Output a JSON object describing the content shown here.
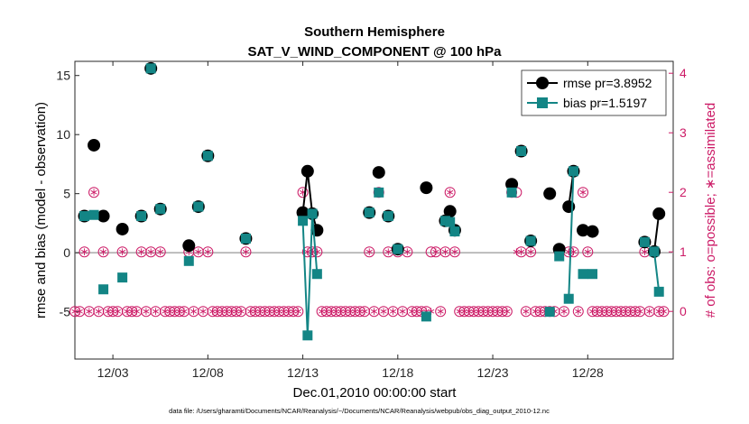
{
  "chart_data": {
    "type": "line",
    "title_line1": "Southern Hemisphere",
    "title_line2": "SAT_V_WIND_COMPONENT @ 100 hPa",
    "xlabel": "Dec.01,2010 00:00:00 start",
    "ylabel_left": "rmse and bias (model - observation)",
    "ylabel_right": "# of obs: o=possible; ∗=assimilated",
    "footer": "data file: /Users/gharamti/Documents/NCAR/Reanalysis/~/Documents/NCAR/Reanalysis/webpub/obs_diag_output_2010-12.nc",
    "xlim": [
      0,
      31.5
    ],
    "ylim_left": [
      -9.0,
      16.2
    ],
    "ylim_right": [
      -0.8,
      4.2
    ],
    "x_ticks": [
      {
        "x": 2.0,
        "label": "12/03"
      },
      {
        "x": 7.0,
        "label": "12/08"
      },
      {
        "x": 12.0,
        "label": "12/13"
      },
      {
        "x": 17.0,
        "label": "12/18"
      },
      {
        "x": 22.0,
        "label": "12/23"
      },
      {
        "x": 27.0,
        "label": "12/28"
      }
    ],
    "y_ticks_left": [
      "-5",
      "0",
      "5",
      "10",
      "15"
    ],
    "y_ticks_right": [
      "0",
      "1",
      "2",
      "3",
      "4"
    ],
    "legend": [
      {
        "label": "rmse pr=3.8952",
        "color": "#000000"
      },
      {
        "label": "bias pr=1.5197",
        "color": "#138585"
      }
    ],
    "colors": {
      "rmse": "#000000",
      "bias": "#138585",
      "obs": "#cc1a66",
      "zero_line": "#aaaaaa"
    },
    "series": [
      {
        "name": "rmse",
        "points": [
          [
            0.5,
            3.1
          ],
          [
            1.0,
            9.1
          ],
          [
            1.5,
            3.1
          ],
          [
            2.5,
            2.0
          ],
          [
            3.5,
            3.1
          ],
          [
            4.0,
            15.6
          ],
          [
            4.5,
            3.7
          ],
          [
            6.0,
            0.6
          ],
          [
            6.5,
            3.9
          ],
          [
            7.0,
            8.2
          ],
          [
            9.0,
            1.2
          ],
          [
            12.0,
            3.4
          ],
          [
            12.25,
            6.9
          ],
          [
            12.5,
            3.3
          ],
          [
            12.75,
            1.9
          ],
          [
            15.5,
            3.4
          ],
          [
            16.0,
            6.8
          ],
          [
            16.5,
            3.1
          ],
          [
            17.0,
            0.3
          ],
          [
            18.5,
            5.5
          ],
          [
            19.5,
            2.7
          ],
          [
            19.75,
            3.5
          ],
          [
            20.0,
            1.9
          ],
          [
            23.0,
            5.8
          ],
          [
            23.5,
            8.6
          ],
          [
            24.0,
            1.0
          ],
          [
            25.0,
            5.0
          ],
          [
            25.5,
            0.3
          ],
          [
            26.0,
            3.9
          ],
          [
            26.25,
            6.9
          ],
          [
            26.75,
            1.9
          ],
          [
            27.25,
            1.8
          ],
          [
            30.0,
            0.9
          ],
          [
            30.5,
            0.1
          ],
          [
            30.75,
            3.3
          ]
        ]
      },
      {
        "name": "bias",
        "points": [
          [
            0.5,
            3.1
          ],
          [
            1.0,
            3.2
          ],
          [
            1.5,
            -3.1
          ],
          [
            2.5,
            -2.1
          ],
          [
            3.5,
            3.1
          ],
          [
            4.0,
            15.6
          ],
          [
            4.5,
            3.7
          ],
          [
            6.0,
            -0.7
          ],
          [
            6.5,
            3.9
          ],
          [
            7.0,
            8.2
          ],
          [
            9.0,
            1.2
          ],
          [
            12.0,
            2.7
          ],
          [
            12.25,
            -7.0
          ],
          [
            12.5,
            3.3
          ],
          [
            12.75,
            -1.8
          ],
          [
            15.5,
            3.4
          ],
          [
            16.0,
            5.1
          ],
          [
            16.5,
            3.1
          ],
          [
            17.0,
            0.3
          ],
          [
            18.5,
            -5.4
          ],
          [
            19.5,
            2.7
          ],
          [
            19.75,
            2.6
          ],
          [
            20.0,
            1.8
          ],
          [
            23.0,
            5.1
          ],
          [
            23.5,
            8.6
          ],
          [
            24.0,
            1.0
          ],
          [
            25.0,
            -5.0
          ],
          [
            25.5,
            -0.3
          ],
          [
            26.0,
            -3.9
          ],
          [
            26.25,
            6.9
          ],
          [
            26.75,
            -1.8
          ],
          [
            27.25,
            -1.8
          ],
          [
            30.0,
            0.9
          ],
          [
            30.5,
            0.1
          ],
          [
            30.75,
            -3.3
          ]
        ]
      }
    ],
    "obs_possible": [
      [
        0,
        0
      ],
      [
        0.25,
        0
      ],
      [
        0.5,
        1
      ],
      [
        0.75,
        0
      ],
      [
        1.0,
        2
      ],
      [
        1.25,
        0
      ],
      [
        1.5,
        1
      ],
      [
        1.75,
        0
      ],
      [
        2.0,
        0
      ],
      [
        2.25,
        0
      ],
      [
        2.5,
        1
      ],
      [
        2.75,
        0
      ],
      [
        3.0,
        0
      ],
      [
        3.25,
        0
      ],
      [
        3.5,
        1
      ],
      [
        3.75,
        0
      ],
      [
        4.0,
        1
      ],
      [
        4.25,
        0
      ],
      [
        4.5,
        1
      ],
      [
        4.75,
        0
      ],
      [
        5.0,
        0
      ],
      [
        5.25,
        0
      ],
      [
        5.5,
        0
      ],
      [
        5.75,
        0
      ],
      [
        6.0,
        1
      ],
      [
        6.25,
        0
      ],
      [
        6.5,
        1
      ],
      [
        6.75,
        0
      ],
      [
        7.0,
        1
      ],
      [
        7.25,
        0
      ],
      [
        7.5,
        0
      ],
      [
        7.75,
        0
      ],
      [
        8.0,
        0
      ],
      [
        8.25,
        0
      ],
      [
        8.5,
        0
      ],
      [
        8.75,
        0
      ],
      [
        9.0,
        1
      ],
      [
        9.25,
        0
      ],
      [
        9.5,
        0
      ],
      [
        9.75,
        0
      ],
      [
        10.0,
        0
      ],
      [
        10.25,
        0
      ],
      [
        10.5,
        0
      ],
      [
        10.75,
        0
      ],
      [
        11.0,
        0
      ],
      [
        11.25,
        0
      ],
      [
        11.5,
        0
      ],
      [
        11.75,
        0
      ],
      [
        12.0,
        2
      ],
      [
        12.25,
        1
      ],
      [
        12.5,
        1
      ],
      [
        12.75,
        1
      ],
      [
        13.0,
        0
      ],
      [
        13.25,
        0
      ],
      [
        13.5,
        0
      ],
      [
        13.75,
        0
      ],
      [
        14.0,
        0
      ],
      [
        14.25,
        0
      ],
      [
        14.5,
        0
      ],
      [
        14.75,
        0
      ],
      [
        15.0,
        0
      ],
      [
        15.25,
        0
      ],
      [
        15.5,
        1
      ],
      [
        15.75,
        0
      ],
      [
        16.0,
        2
      ],
      [
        16.25,
        0
      ],
      [
        16.5,
        1
      ],
      [
        16.75,
        0
      ],
      [
        17.0,
        1
      ],
      [
        17.25,
        0
      ],
      [
        17.5,
        1
      ],
      [
        17.75,
        0
      ],
      [
        18.0,
        0
      ],
      [
        18.25,
        0
      ],
      [
        18.5,
        0
      ],
      [
        18.75,
        1
      ],
      [
        19.0,
        1
      ],
      [
        19.25,
        0
      ],
      [
        19.5,
        1
      ],
      [
        19.75,
        2
      ],
      [
        20.0,
        1
      ],
      [
        20.25,
        0
      ],
      [
        20.5,
        0
      ],
      [
        20.75,
        0
      ],
      [
        21.0,
        0
      ],
      [
        21.25,
        0
      ],
      [
        21.5,
        0
      ],
      [
        21.75,
        0
      ],
      [
        22.0,
        0
      ],
      [
        22.25,
        0
      ],
      [
        22.5,
        0
      ],
      [
        22.75,
        0
      ],
      [
        23.0,
        2
      ],
      [
        23.25,
        2
      ],
      [
        23.5,
        1
      ],
      [
        23.75,
        0
      ],
      [
        24.0,
        1
      ],
      [
        24.25,
        0
      ],
      [
        24.5,
        0
      ],
      [
        24.75,
        0
      ],
      [
        25.0,
        0
      ],
      [
        25.25,
        0
      ],
      [
        25.5,
        1
      ],
      [
        25.75,
        0
      ],
      [
        26.0,
        1
      ],
      [
        26.25,
        1
      ],
      [
        26.5,
        0
      ],
      [
        26.75,
        2
      ],
      [
        27.0,
        1
      ],
      [
        27.25,
        0
      ],
      [
        27.5,
        0
      ],
      [
        27.75,
        0
      ],
      [
        28.0,
        0
      ],
      [
        28.25,
        0
      ],
      [
        28.5,
        0
      ],
      [
        28.75,
        0
      ],
      [
        29.0,
        0
      ],
      [
        29.25,
        0
      ],
      [
        29.5,
        0
      ],
      [
        29.75,
        0
      ],
      [
        30.0,
        1
      ],
      [
        30.25,
        0
      ],
      [
        30.5,
        1
      ],
      [
        30.75,
        0
      ],
      [
        31.0,
        0
      ]
    ],
    "obs_assimilated": [
      [
        0,
        0
      ],
      [
        0.25,
        0
      ],
      [
        0.5,
        1
      ],
      [
        0.75,
        0
      ],
      [
        1.0,
        2
      ],
      [
        1.25,
        0
      ],
      [
        1.5,
        1
      ],
      [
        1.75,
        0
      ],
      [
        2.0,
        0
      ],
      [
        2.25,
        0
      ],
      [
        2.5,
        1
      ],
      [
        2.75,
        0
      ],
      [
        3.0,
        0
      ],
      [
        3.25,
        0
      ],
      [
        3.5,
        1
      ],
      [
        3.75,
        0
      ],
      [
        4.0,
        1
      ],
      [
        4.25,
        0
      ],
      [
        4.5,
        1
      ],
      [
        4.75,
        0
      ],
      [
        5.0,
        0
      ],
      [
        5.25,
        0
      ],
      [
        5.5,
        0
      ],
      [
        5.75,
        0
      ],
      [
        6.0,
        1
      ],
      [
        6.25,
        0
      ],
      [
        6.5,
        1
      ],
      [
        6.75,
        0
      ],
      [
        7.0,
        1
      ],
      [
        7.25,
        0
      ],
      [
        7.5,
        0
      ],
      [
        7.75,
        0
      ],
      [
        8.0,
        0
      ],
      [
        8.25,
        0
      ],
      [
        8.5,
        0
      ],
      [
        8.75,
        0
      ],
      [
        9.0,
        1
      ],
      [
        9.25,
        0
      ],
      [
        9.5,
        0
      ],
      [
        9.75,
        0
      ],
      [
        10.0,
        0
      ],
      [
        10.25,
        0
      ],
      [
        10.5,
        0
      ],
      [
        10.75,
        0
      ],
      [
        11.0,
        0
      ],
      [
        11.25,
        0
      ],
      [
        11.5,
        0
      ],
      [
        11.75,
        0
      ],
      [
        12.0,
        2
      ],
      [
        12.25,
        1
      ],
      [
        12.5,
        1
      ],
      [
        12.75,
        1
      ],
      [
        13.0,
        0
      ],
      [
        13.25,
        0
      ],
      [
        13.5,
        0
      ],
      [
        13.75,
        0
      ],
      [
        14.0,
        0
      ],
      [
        14.25,
        0
      ],
      [
        14.5,
        0
      ],
      [
        14.75,
        0
      ],
      [
        15.0,
        0
      ],
      [
        15.25,
        0
      ],
      [
        15.5,
        1
      ],
      [
        15.75,
        0
      ],
      [
        16.0,
        2
      ],
      [
        16.25,
        0
      ],
      [
        16.5,
        1
      ],
      [
        16.75,
        0
      ],
      [
        17.0,
        1
      ],
      [
        17.25,
        0
      ],
      [
        17.5,
        1
      ],
      [
        17.75,
        0
      ],
      [
        18.0,
        0
      ],
      [
        18.25,
        0
      ],
      [
        18.5,
        0
      ],
      [
        18.75,
        0
      ],
      [
        19.0,
        1
      ],
      [
        19.25,
        0
      ],
      [
        19.5,
        1
      ],
      [
        19.75,
        2
      ],
      [
        20.0,
        1
      ],
      [
        20.25,
        0
      ],
      [
        20.5,
        0
      ],
      [
        20.75,
        0
      ],
      [
        21.0,
        0
      ],
      [
        21.25,
        0
      ],
      [
        21.5,
        0
      ],
      [
        21.75,
        0
      ],
      [
        22.0,
        0
      ],
      [
        22.25,
        0
      ],
      [
        22.5,
        0
      ],
      [
        22.75,
        0
      ],
      [
        23.0,
        2
      ],
      [
        23.25,
        1
      ],
      [
        23.5,
        1
      ],
      [
        23.75,
        0
      ],
      [
        24.0,
        1
      ],
      [
        24.25,
        0
      ],
      [
        24.5,
        0
      ],
      [
        24.75,
        0
      ],
      [
        25.0,
        0
      ],
      [
        25.25,
        0
      ],
      [
        25.5,
        1
      ],
      [
        25.75,
        0
      ],
      [
        26.0,
        1
      ],
      [
        26.25,
        1
      ],
      [
        26.5,
        0
      ],
      [
        26.75,
        2
      ],
      [
        27.0,
        1
      ],
      [
        27.25,
        0
      ],
      [
        27.5,
        0
      ],
      [
        27.75,
        0
      ],
      [
        28.0,
        0
      ],
      [
        28.25,
        0
      ],
      [
        28.5,
        0
      ],
      [
        28.75,
        0
      ],
      [
        29.0,
        0
      ],
      [
        29.25,
        0
      ],
      [
        29.5,
        0
      ],
      [
        29.75,
        0
      ],
      [
        30.0,
        1
      ],
      [
        30.25,
        0
      ],
      [
        30.5,
        1
      ],
      [
        30.75,
        0
      ],
      [
        31.0,
        0
      ]
    ]
  }
}
